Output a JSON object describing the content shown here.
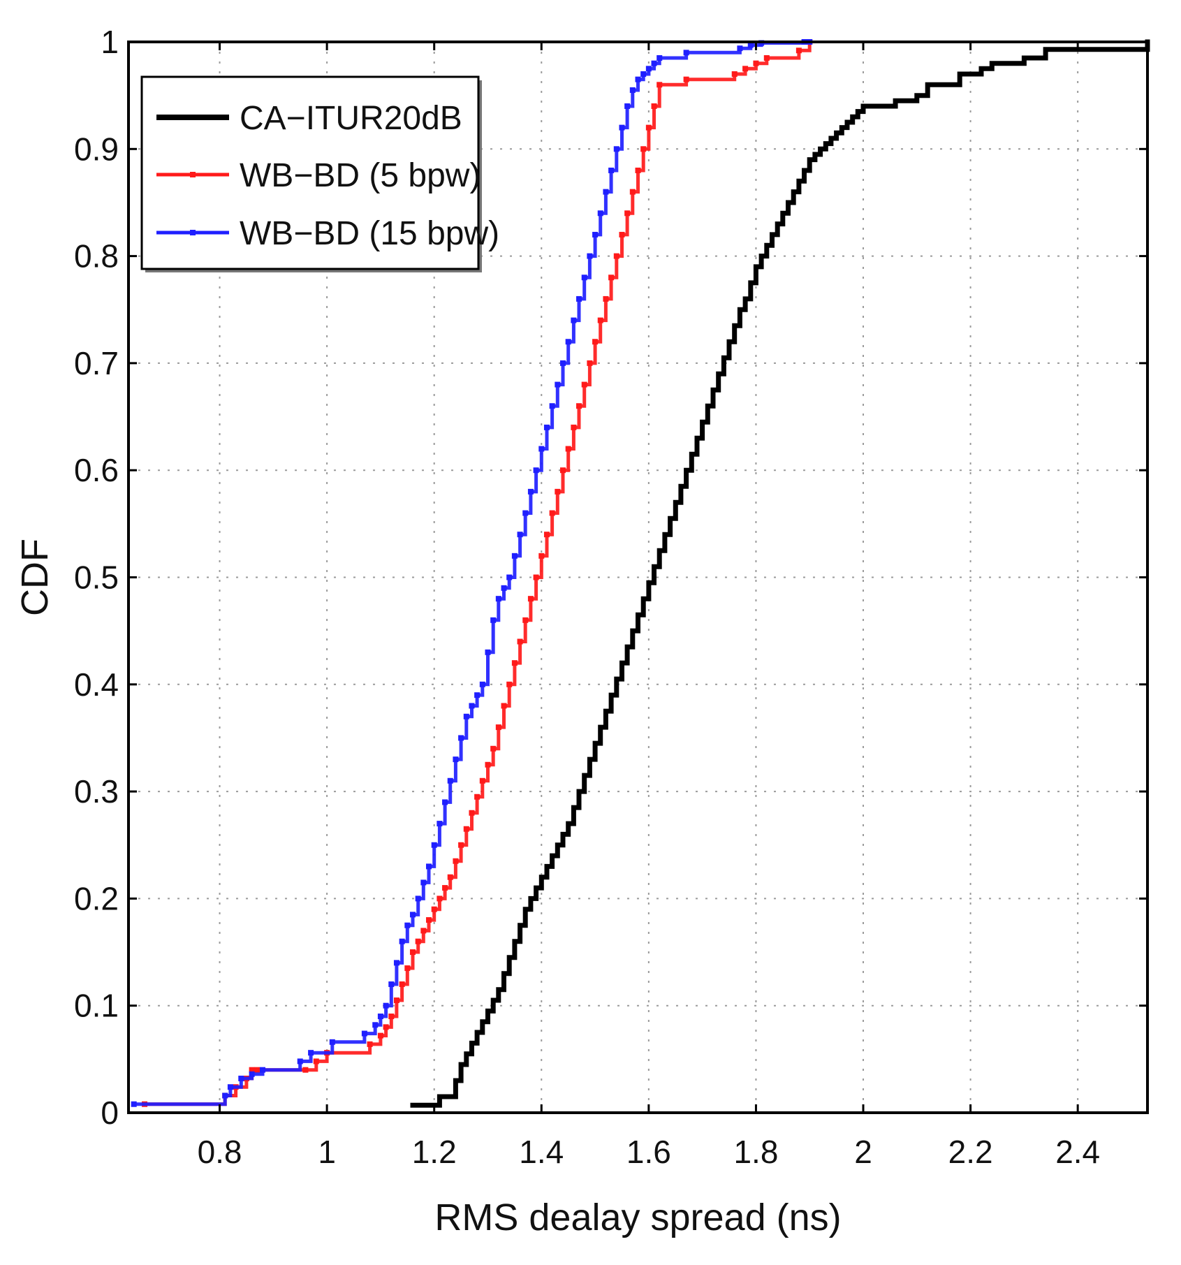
{
  "chart_data": {
    "type": "line",
    "step": true,
    "xlabel": "RMS dealay spread (ns)",
    "ylabel": "CDF",
    "xlim": [
      0.63,
      2.53
    ],
    "ylim": [
      0,
      1
    ],
    "x_ticks": [
      0.8,
      1,
      1.2,
      1.4,
      1.6,
      1.8,
      2,
      2.2,
      2.4
    ],
    "x_tick_labels": [
      "0.8",
      "1",
      "1.2",
      "1.4",
      "1.6",
      "1.8",
      "2",
      "2.2",
      "2.4"
    ],
    "y_ticks": [
      0,
      0.1,
      0.2,
      0.3,
      0.4,
      0.5,
      0.6,
      0.7,
      0.8,
      0.9,
      1
    ],
    "y_tick_labels": [
      "0",
      "0.1",
      "0.2",
      "0.3",
      "0.4",
      "0.5",
      "0.6",
      "0.7",
      "0.8",
      "0.9",
      "1"
    ],
    "grid": true,
    "legend_position": "top-left",
    "series": [
      {
        "name": "CA−ITUR20dB",
        "color": "#000000",
        "marker": false,
        "x": [
          1.16,
          1.21,
          1.24,
          1.25,
          1.26,
          1.27,
          1.28,
          1.29,
          1.3,
          1.31,
          1.32,
          1.33,
          1.34,
          1.35,
          1.36,
          1.37,
          1.38,
          1.39,
          1.4,
          1.41,
          1.42,
          1.43,
          1.44,
          1.45,
          1.46,
          1.47,
          1.48,
          1.49,
          1.5,
          1.51,
          1.52,
          1.53,
          1.54,
          1.55,
          1.56,
          1.57,
          1.58,
          1.59,
          1.6,
          1.61,
          1.62,
          1.63,
          1.64,
          1.65,
          1.66,
          1.67,
          1.68,
          1.69,
          1.7,
          1.71,
          1.72,
          1.73,
          1.74,
          1.75,
          1.76,
          1.77,
          1.78,
          1.79,
          1.8,
          1.81,
          1.82,
          1.83,
          1.84,
          1.85,
          1.86,
          1.87,
          1.88,
          1.89,
          1.9,
          1.91,
          1.92,
          1.93,
          1.94,
          1.95,
          1.96,
          1.97,
          1.98,
          1.99,
          2.0,
          2.06,
          2.1,
          2.12,
          2.18,
          2.22,
          2.24,
          2.3,
          2.34,
          2.53
        ],
        "y": [
          0.007,
          0.015,
          0.03,
          0.045,
          0.055,
          0.065,
          0.075,
          0.085,
          0.095,
          0.105,
          0.115,
          0.13,
          0.145,
          0.16,
          0.175,
          0.19,
          0.2,
          0.21,
          0.22,
          0.23,
          0.24,
          0.25,
          0.26,
          0.27,
          0.285,
          0.3,
          0.315,
          0.33,
          0.345,
          0.36,
          0.375,
          0.39,
          0.405,
          0.42,
          0.435,
          0.45,
          0.465,
          0.48,
          0.495,
          0.51,
          0.525,
          0.54,
          0.555,
          0.57,
          0.585,
          0.6,
          0.615,
          0.63,
          0.645,
          0.66,
          0.675,
          0.69,
          0.705,
          0.72,
          0.735,
          0.75,
          0.76,
          0.775,
          0.79,
          0.8,
          0.81,
          0.82,
          0.83,
          0.84,
          0.85,
          0.86,
          0.87,
          0.88,
          0.89,
          0.895,
          0.9,
          0.905,
          0.91,
          0.915,
          0.92,
          0.925,
          0.93,
          0.935,
          0.94,
          0.945,
          0.95,
          0.96,
          0.97,
          0.975,
          0.98,
          0.985,
          0.993,
          1.0
        ]
      },
      {
        "name": "WB−BD (5 bpw)",
        "color": "#ff1a1a",
        "marker": true,
        "x": [
          0.66,
          0.81,
          0.83,
          0.85,
          0.86,
          0.87,
          0.96,
          0.98,
          1.0,
          1.08,
          1.1,
          1.11,
          1.12,
          1.13,
          1.14,
          1.15,
          1.16,
          1.17,
          1.18,
          1.19,
          1.2,
          1.21,
          1.22,
          1.23,
          1.24,
          1.25,
          1.26,
          1.27,
          1.28,
          1.29,
          1.3,
          1.31,
          1.32,
          1.33,
          1.34,
          1.35,
          1.36,
          1.37,
          1.38,
          1.39,
          1.4,
          1.41,
          1.42,
          1.43,
          1.44,
          1.45,
          1.46,
          1.47,
          1.48,
          1.49,
          1.5,
          1.51,
          1.52,
          1.53,
          1.54,
          1.55,
          1.56,
          1.57,
          1.58,
          1.59,
          1.6,
          1.61,
          1.62,
          1.67,
          1.76,
          1.78,
          1.8,
          1.82,
          1.88,
          1.9
        ],
        "y": [
          0.008,
          0.016,
          0.024,
          0.032,
          0.04,
          0.04,
          0.04,
          0.048,
          0.056,
          0.064,
          0.072,
          0.08,
          0.09,
          0.105,
          0.12,
          0.135,
          0.15,
          0.16,
          0.17,
          0.18,
          0.19,
          0.2,
          0.21,
          0.22,
          0.235,
          0.25,
          0.265,
          0.28,
          0.295,
          0.31,
          0.325,
          0.34,
          0.36,
          0.38,
          0.4,
          0.42,
          0.44,
          0.46,
          0.48,
          0.5,
          0.52,
          0.54,
          0.56,
          0.58,
          0.6,
          0.62,
          0.64,
          0.66,
          0.68,
          0.7,
          0.72,
          0.74,
          0.76,
          0.78,
          0.8,
          0.82,
          0.84,
          0.86,
          0.88,
          0.9,
          0.92,
          0.94,
          0.96,
          0.965,
          0.97,
          0.975,
          0.98,
          0.985,
          0.992,
          1.0
        ]
      },
      {
        "name": "WB−BD (15 bpw)",
        "color": "#1f1fff",
        "marker": true,
        "x": [
          0.64,
          0.81,
          0.82,
          0.84,
          0.86,
          0.88,
          0.95,
          0.97,
          1.01,
          1.07,
          1.09,
          1.1,
          1.11,
          1.12,
          1.13,
          1.14,
          1.15,
          1.16,
          1.17,
          1.18,
          1.19,
          1.2,
          1.21,
          1.22,
          1.23,
          1.24,
          1.25,
          1.26,
          1.27,
          1.28,
          1.29,
          1.3,
          1.31,
          1.32,
          1.33,
          1.34,
          1.35,
          1.36,
          1.37,
          1.38,
          1.39,
          1.4,
          1.41,
          1.42,
          1.43,
          1.44,
          1.45,
          1.46,
          1.47,
          1.48,
          1.49,
          1.5,
          1.51,
          1.52,
          1.53,
          1.54,
          1.55,
          1.56,
          1.57,
          1.58,
          1.59,
          1.6,
          1.61,
          1.62,
          1.67,
          1.77,
          1.79,
          1.81,
          1.89,
          1.9
        ],
        "y": [
          0.008,
          0.016,
          0.024,
          0.032,
          0.036,
          0.04,
          0.048,
          0.056,
          0.066,
          0.074,
          0.082,
          0.09,
          0.1,
          0.12,
          0.14,
          0.16,
          0.175,
          0.185,
          0.2,
          0.215,
          0.23,
          0.25,
          0.27,
          0.29,
          0.31,
          0.33,
          0.35,
          0.37,
          0.38,
          0.39,
          0.4,
          0.43,
          0.46,
          0.48,
          0.49,
          0.5,
          0.52,
          0.54,
          0.56,
          0.58,
          0.6,
          0.62,
          0.64,
          0.66,
          0.68,
          0.7,
          0.72,
          0.74,
          0.76,
          0.78,
          0.8,
          0.82,
          0.84,
          0.86,
          0.88,
          0.9,
          0.92,
          0.94,
          0.955,
          0.965,
          0.97,
          0.975,
          0.98,
          0.985,
          0.99,
          0.994,
          0.997,
          0.999,
          1.0,
          1.0
        ]
      }
    ]
  }
}
